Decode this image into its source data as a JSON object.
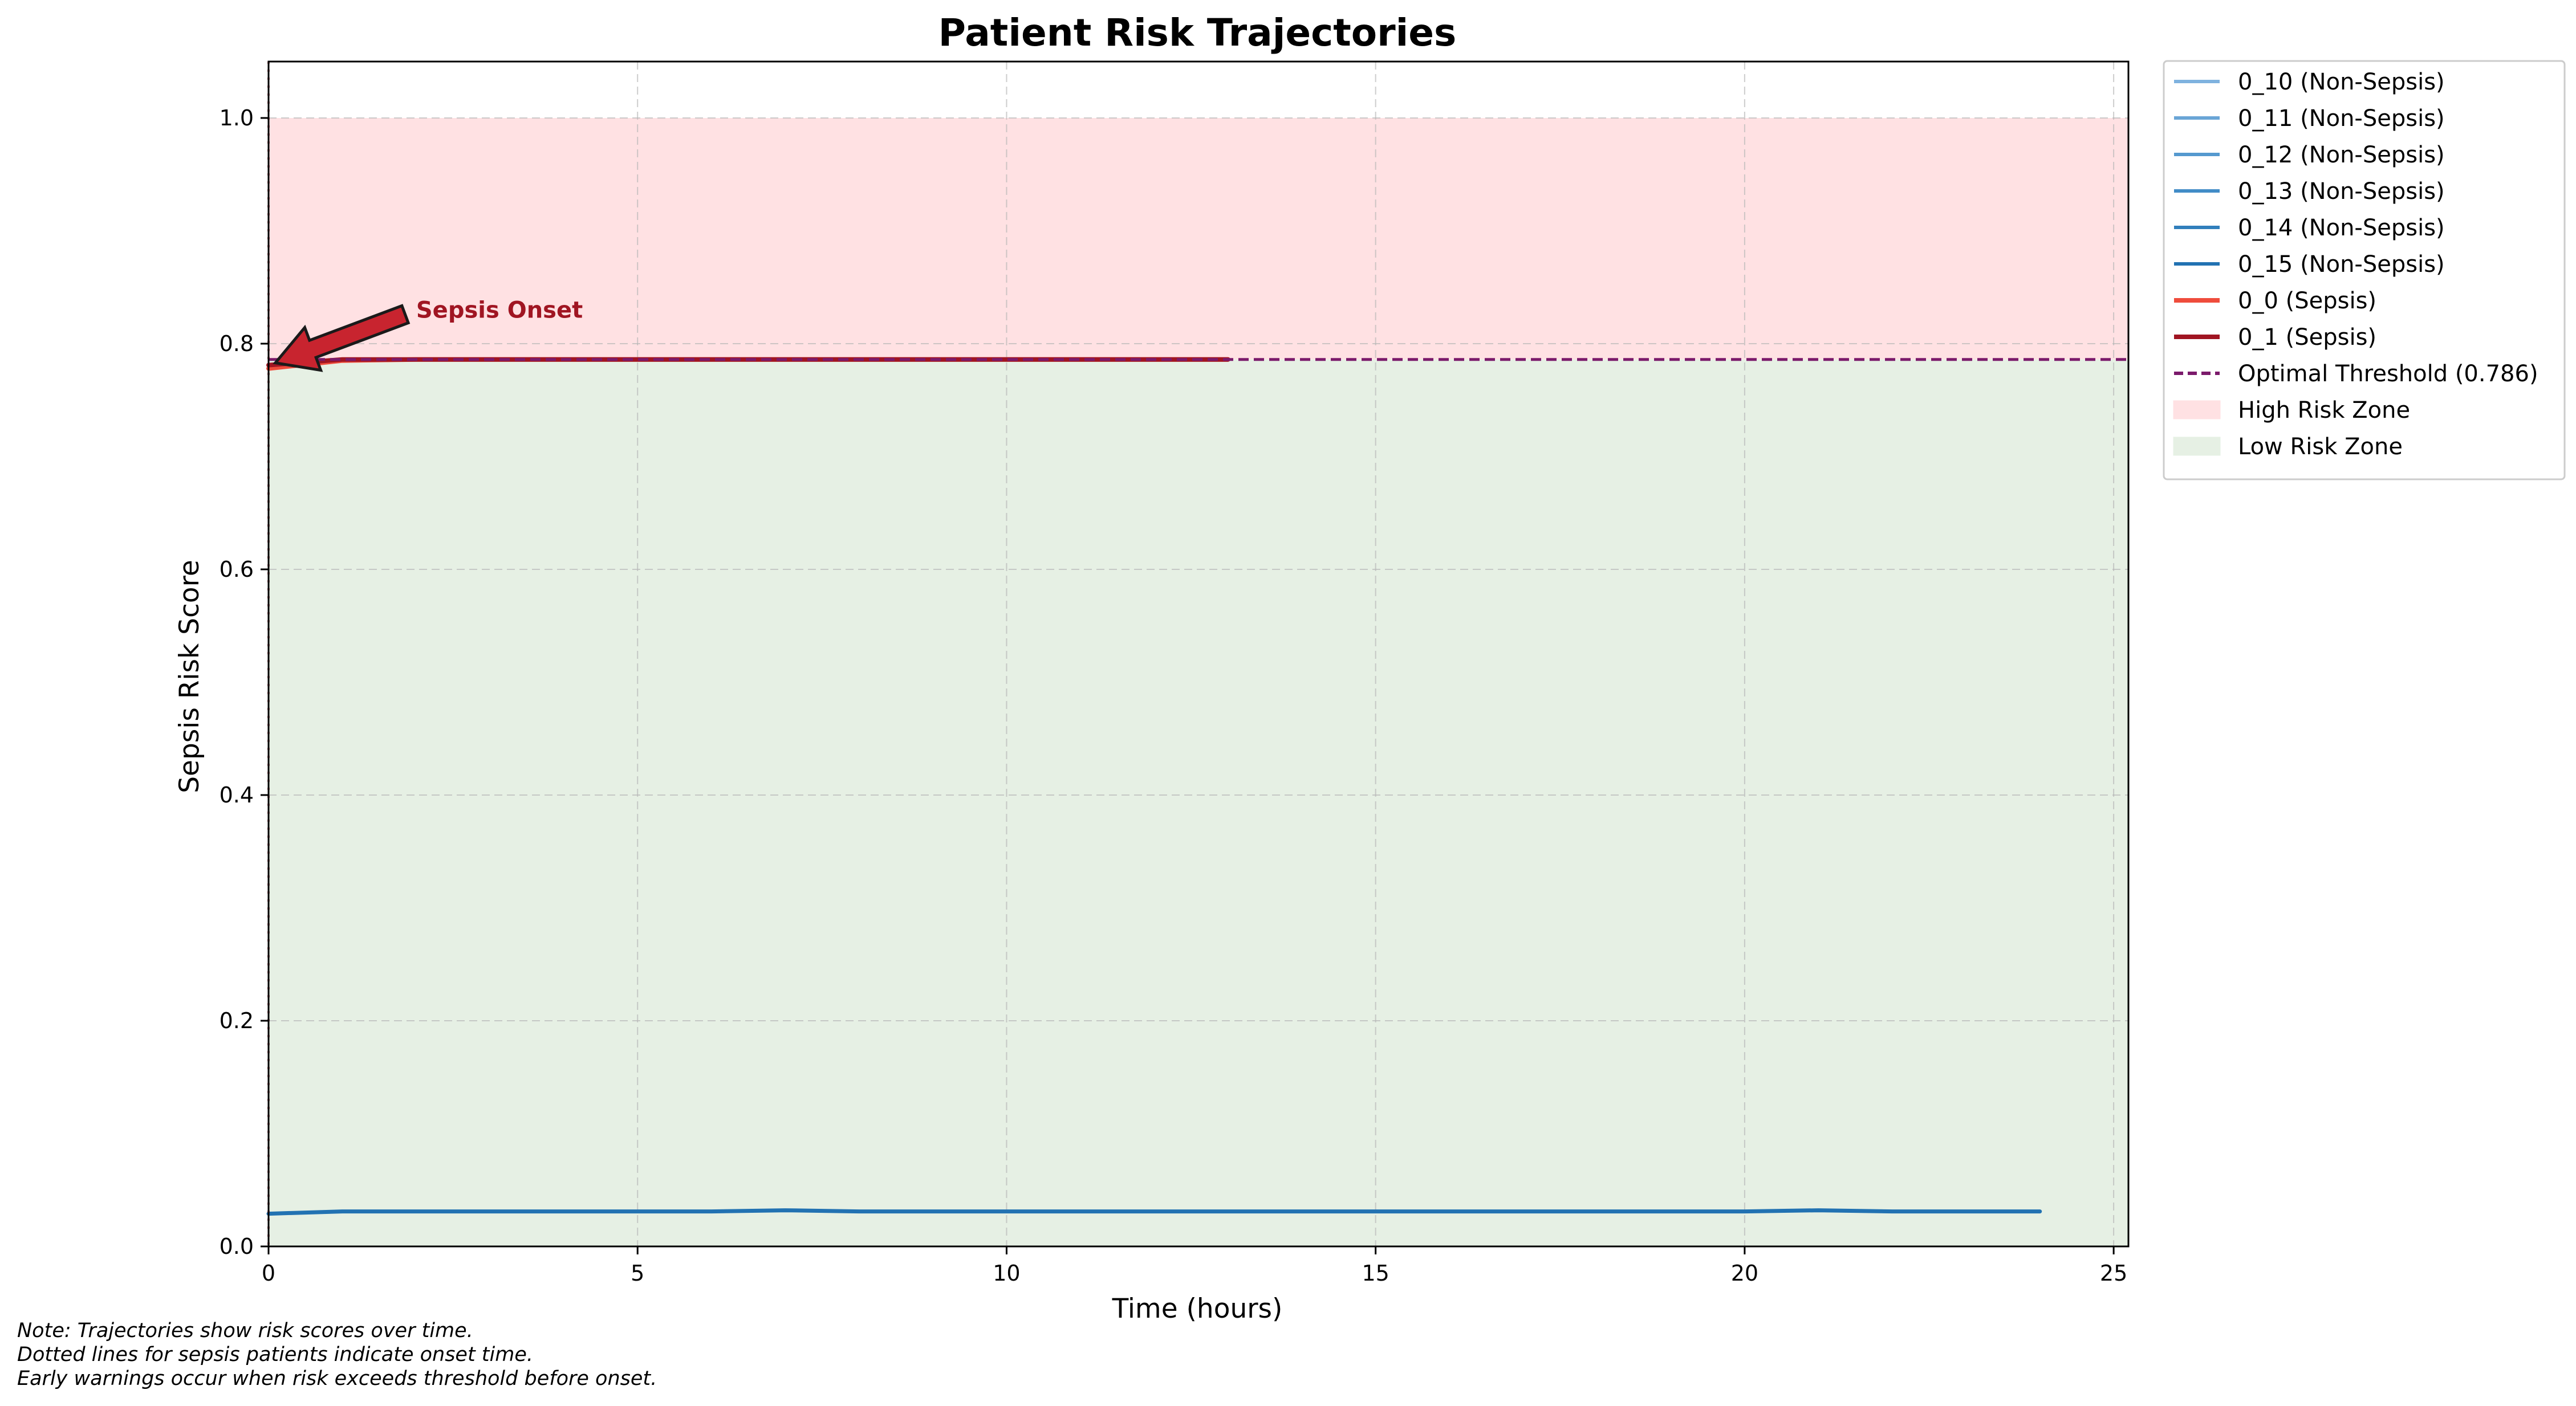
{
  "chart_data": {
    "type": "line",
    "title": "Patient Risk Trajectories",
    "xlabel": "Time (hours)",
    "ylabel": "Sepsis Risk Score",
    "xlim": [
      0,
      25.2
    ],
    "ylim": [
      0,
      1.05
    ],
    "x_ticks": [
      0,
      5,
      10,
      15,
      20,
      25
    ],
    "x_tick_labels": [
      "0",
      "5",
      "10",
      "15",
      "20",
      "25"
    ],
    "y_ticks": [
      0.0,
      0.2,
      0.4,
      0.6,
      0.8,
      1.0
    ],
    "y_tick_labels": [
      "0.0",
      "0.2",
      "0.4",
      "0.6",
      "0.8",
      "1.0"
    ],
    "grid": true,
    "legend_position": "outside-right-top",
    "zones": [
      {
        "name": "High Risk Zone",
        "y_range": [
          0.786,
          1.0
        ],
        "color": "#ffe1e3"
      },
      {
        "name": "Low Risk Zone",
        "y_range": [
          0.0,
          0.786
        ],
        "color": "#e6f0e4"
      }
    ],
    "threshold": {
      "name": "Optimal Threshold (0.786)",
      "value": 0.786,
      "color": "#7b1a6b",
      "style": "dashed"
    },
    "series": [
      {
        "name": "0_10 (Non-Sepsis)",
        "color": "#7fb2df",
        "x": [],
        "y": []
      },
      {
        "name": "0_11 (Non-Sepsis)",
        "color": "#6aa5d6",
        "x": [],
        "y": []
      },
      {
        "name": "0_12 (Non-Sepsis)",
        "color": "#5599cf",
        "x": [],
        "y": []
      },
      {
        "name": "0_13 (Non-Sepsis)",
        "color": "#428cc7",
        "x": [],
        "y": []
      },
      {
        "name": "0_14 (Non-Sepsis)",
        "color": "#317fbc",
        "x": [],
        "y": []
      },
      {
        "name": "0_15 (Non-Sepsis)",
        "color": "#2272b2",
        "x": [
          0,
          1,
          2,
          3,
          4,
          5,
          6,
          7,
          8,
          9,
          10,
          11,
          12,
          13,
          14,
          15,
          16,
          17,
          18,
          19,
          20,
          21,
          22,
          23,
          24
        ],
        "y": [
          0.029,
          0.031,
          0.031,
          0.031,
          0.031,
          0.031,
          0.031,
          0.032,
          0.031,
          0.031,
          0.031,
          0.031,
          0.031,
          0.031,
          0.031,
          0.031,
          0.031,
          0.031,
          0.031,
          0.031,
          0.031,
          0.032,
          0.031,
          0.031,
          0.031
        ]
      },
      {
        "name": "0_0 (Sepsis)",
        "color": "#ef4c3c",
        "x": [
          0,
          1,
          2,
          3,
          4,
          5,
          6,
          7,
          8,
          9,
          10,
          11,
          12,
          13
        ],
        "y": [
          0.778,
          0.785,
          0.786,
          0.786,
          0.786,
          0.786,
          0.786,
          0.786,
          0.786,
          0.786,
          0.786,
          0.786,
          0.786,
          0.786
        ]
      },
      {
        "name": "0_1 (Sepsis)",
        "color": "#a01522",
        "x": [
          0,
          1,
          2,
          3,
          4,
          5,
          6,
          7,
          8,
          9,
          10,
          11,
          12,
          13
        ],
        "y": [
          0.781,
          0.786,
          0.786,
          0.786,
          0.786,
          0.786,
          0.786,
          0.786,
          0.786,
          0.786,
          0.786,
          0.786,
          0.786,
          0.786
        ]
      }
    ],
    "annotation": {
      "text": "Sepsis Onset",
      "x": 0,
      "y": 0.786,
      "text_x": 2.0,
      "text_y": 0.83,
      "color": "#a01522"
    },
    "note_lines": [
      "Note: Trajectories show risk scores over time.",
      "Dotted lines for sepsis patients indicate onset time.",
      "Early warnings occur when risk exceeds threshold before onset."
    ]
  }
}
